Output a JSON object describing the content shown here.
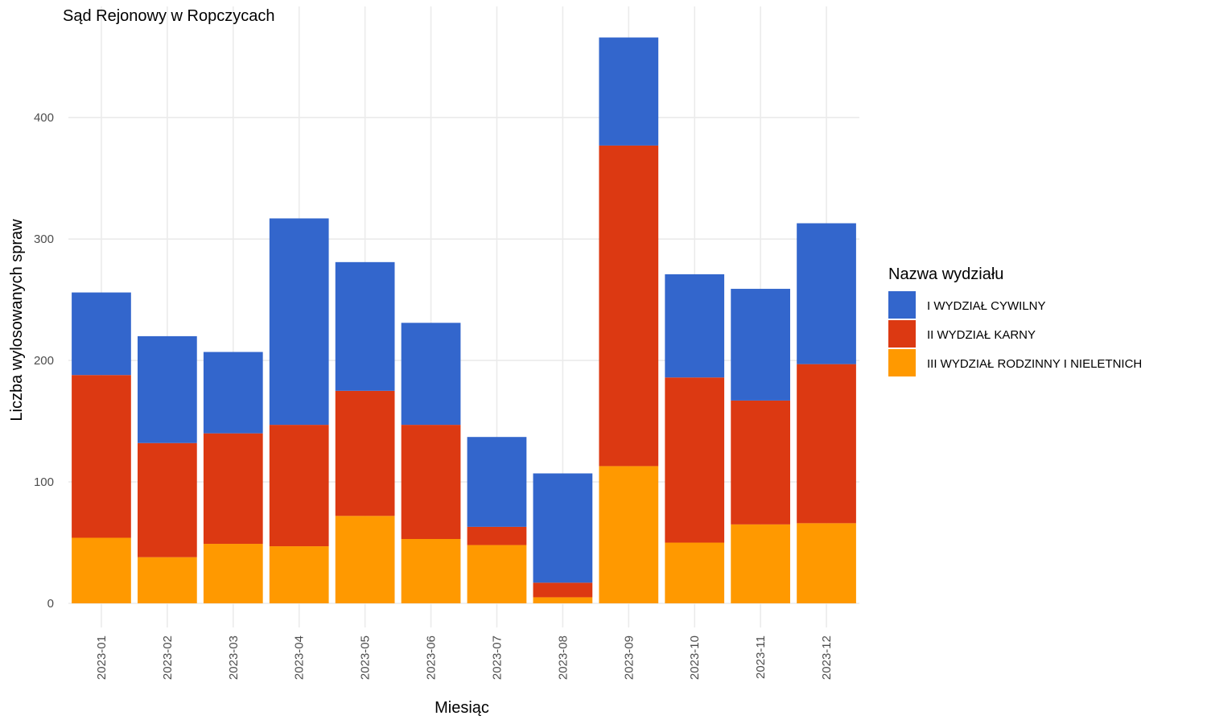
{
  "chart_data": {
    "type": "bar",
    "stacked": true,
    "title": "Sąd Rejonowy w Ropczycach",
    "xlabel": "Miesiąc",
    "ylabel": "Liczba wylosowanych spraw",
    "ylim": [
      0,
      470
    ],
    "yticks": [
      0,
      100,
      200,
      300,
      400
    ],
    "grid": true,
    "legend": {
      "title": "Nazwa wydziału",
      "position": "right"
    },
    "categories": [
      "2023-01",
      "2023-02",
      "2023-03",
      "2023-04",
      "2023-05",
      "2023-06",
      "2023-07",
      "2023-08",
      "2023-09",
      "2023-10",
      "2023-11",
      "2023-12"
    ],
    "series": [
      {
        "name": "III WYDZIAŁ RODZINNY I NIELETNICH",
        "color": "#ff9900",
        "values": [
          54,
          38,
          49,
          47,
          72,
          53,
          48,
          5,
          113,
          50,
          65,
          66
        ]
      },
      {
        "name": "II WYDZIAŁ KARNY",
        "color": "#dc3912",
        "values": [
          134,
          94,
          91,
          100,
          103,
          94,
          15,
          12,
          264,
          136,
          102,
          131
        ]
      },
      {
        "name": "I WYDZIAŁ CYWILNY",
        "color": "#3366cc",
        "values": [
          68,
          88,
          67,
          170,
          106,
          84,
          74,
          90,
          89,
          85,
          92,
          116
        ]
      }
    ],
    "legend_order": [
      "I WYDZIAŁ CYWILNY",
      "II WYDZIAŁ KARNY",
      "III WYDZIAŁ RODZINNY I NIELETNICH"
    ]
  }
}
